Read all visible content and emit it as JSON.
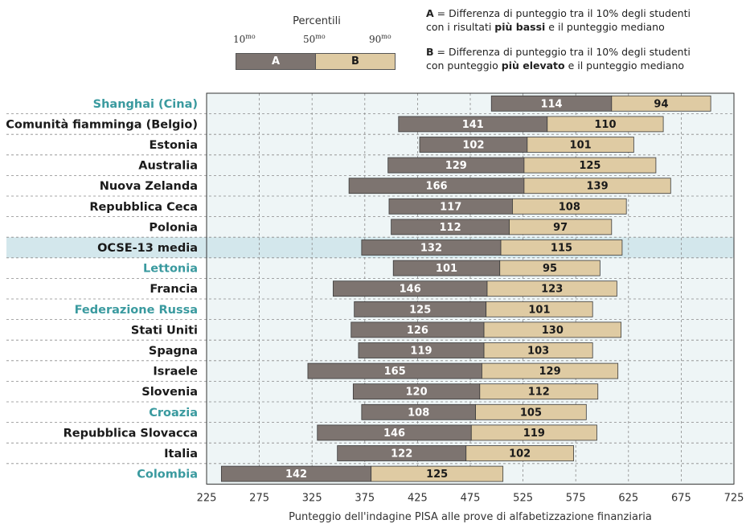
{
  "legend": {
    "title": "Percentili",
    "p10": "10",
    "p50": "50",
    "p90": "90",
    "suffix": "mo",
    "a_label": "A",
    "b_label": "B"
  },
  "notes": {
    "a_key": "A",
    "a_text_1": " = Differenza di punteggio tra il 10% degli studenti",
    "a_text_2": "con i risultati ",
    "a_bold": "più bassi",
    "a_text_3": " e il punteggio mediano",
    "b_key": "B",
    "b_text_1": " = Differenza di punteggio tra il 10% degli studenti",
    "b_text_2": "con punteggio ",
    "b_bold": "più elevato",
    "b_text_3": " e il punteggio mediano"
  },
  "colors": {
    "a_fill": "#7d7470",
    "b_fill": "#dfcba3",
    "plot_bg": "#eef5f6",
    "highlight_row": "#d3e7ec",
    "teal_label": "#3a9a9f",
    "dark_label": "#1a1a1a"
  },
  "chart_data": {
    "type": "bar",
    "subtype": "floating-stacked-horizontal",
    "xlabel": "Punteggio dell'indagine PISA alle prove di alfabetizzazione finanziaria",
    "xlim": [
      225,
      725
    ],
    "xticks": [
      225,
      275,
      325,
      375,
      425,
      475,
      525,
      575,
      625,
      675,
      725
    ],
    "grid": true,
    "series": [
      {
        "name": "A",
        "description_key": "A"
      },
      {
        "name": "B",
        "description_key": "B"
      }
    ],
    "rows": [
      {
        "label": "Shanghai (Cina)",
        "style": "teal",
        "p50": 609,
        "a": 114,
        "b": 94
      },
      {
        "label": "Comunità fiamminga (Belgio)",
        "style": "dark",
        "p50": 548,
        "a": 141,
        "b": 110
      },
      {
        "label": "Estonia",
        "style": "dark",
        "p50": 529,
        "a": 102,
        "b": 101
      },
      {
        "label": "Australia",
        "style": "dark",
        "p50": 526,
        "a": 129,
        "b": 125
      },
      {
        "label": "Nuova Zelanda",
        "style": "dark",
        "p50": 526,
        "a": 166,
        "b": 139
      },
      {
        "label": "Repubblica Ceca",
        "style": "dark",
        "p50": 515,
        "a": 117,
        "b": 108
      },
      {
        "label": "Polonia",
        "style": "dark",
        "p50": 512,
        "a": 112,
        "b": 97
      },
      {
        "label": "OCSE-13 media",
        "style": "bold",
        "p50": 504,
        "a": 132,
        "b": 115
      },
      {
        "label": "Lettonia",
        "style": "teal",
        "p50": 503,
        "a": 101,
        "b": 95
      },
      {
        "label": "Francia",
        "style": "dark",
        "p50": 491,
        "a": 146,
        "b": 123
      },
      {
        "label": "Federazione Russa",
        "style": "teal",
        "p50": 490,
        "a": 125,
        "b": 101
      },
      {
        "label": "Stati Uniti",
        "style": "dark",
        "p50": 488,
        "a": 126,
        "b": 130
      },
      {
        "label": "Spagna",
        "style": "dark",
        "p50": 488,
        "a": 119,
        "b": 103
      },
      {
        "label": "Israele",
        "style": "dark",
        "p50": 486,
        "a": 165,
        "b": 129
      },
      {
        "label": "Slovenia",
        "style": "dark",
        "p50": 484,
        "a": 120,
        "b": 112
      },
      {
        "label": "Croazia",
        "style": "teal",
        "p50": 480,
        "a": 108,
        "b": 105
      },
      {
        "label": "Repubblica Slovacca",
        "style": "dark",
        "p50": 476,
        "a": 146,
        "b": 119
      },
      {
        "label": "Italia",
        "style": "dark",
        "p50": 471,
        "a": 122,
        "b": 102
      },
      {
        "label": "Colombia",
        "style": "teal",
        "p50": 381,
        "a": 142,
        "b": 125
      }
    ]
  }
}
